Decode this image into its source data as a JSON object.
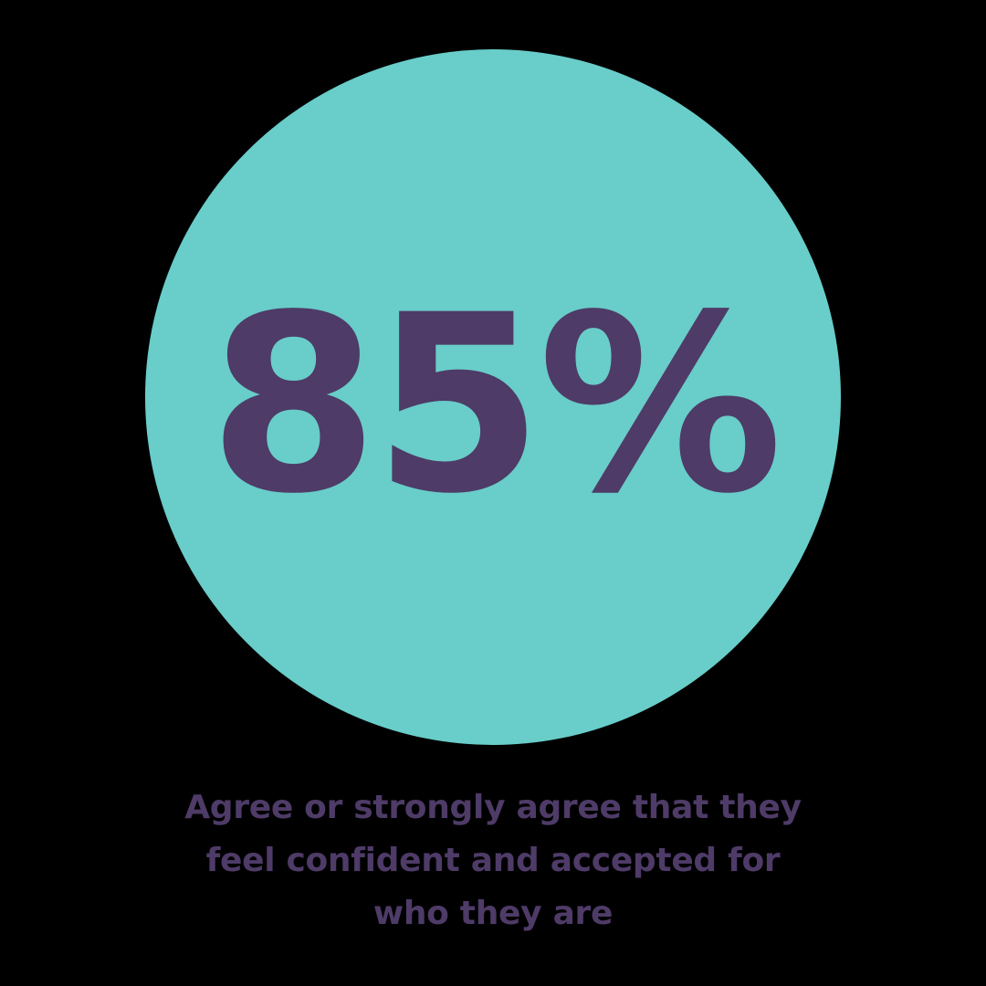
{
  "colors": {
    "background": "#000000",
    "circle": "#69CDC9",
    "text": "#4E3B67"
  },
  "stat": {
    "value": "85%"
  },
  "caption": {
    "full_text": "Agree or strongly agree that they feel confident and accepted for who they are",
    "lines": [
      "Agree or strongly agree that they",
      "feel confident and accepted for",
      "who they are"
    ]
  },
  "chart_data": {
    "type": "table",
    "title": "85%",
    "categories": [
      "Agree or strongly agree that they feel confident and accepted for who they are"
    ],
    "values": [
      85
    ],
    "unit": "percent",
    "layout_hints": {
      "style": "single-stat infographic",
      "stat_container": "teal circle",
      "caption_position": "below circle"
    }
  }
}
